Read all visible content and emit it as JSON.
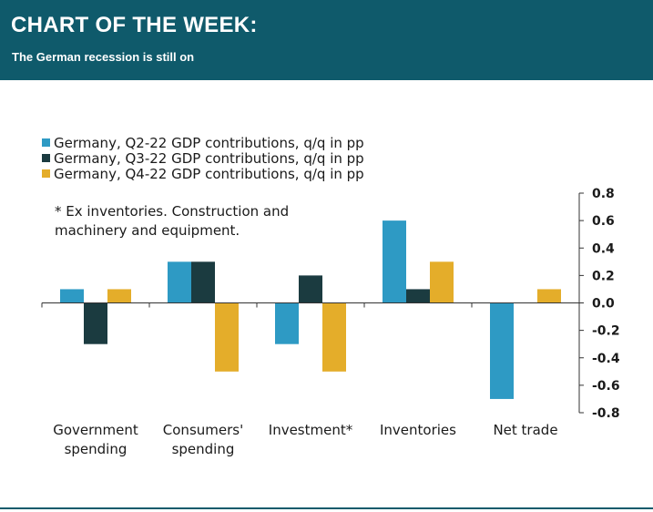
{
  "header": {
    "title": "CHART OF THE WEEK:",
    "subtitle": "The German recession is still on"
  },
  "colors": {
    "header_bg": "#0f5a6b",
    "q2": "#2e9ac4",
    "q3": "#1b3b40",
    "q4": "#e4ad2a"
  },
  "chart_data": {
    "type": "bar",
    "note": "* Ex inventories. Construction and\nmachinery and equipment.",
    "categories": [
      [
        "Government",
        "spending"
      ],
      [
        "Consumers'",
        "spending"
      ],
      [
        "Investment*"
      ],
      [
        "Inventories"
      ],
      [
        "Net trade"
      ]
    ],
    "series": [
      {
        "name": "Germany, Q2-22 GDP contributions, q/q in pp",
        "color": "#2e9ac4",
        "values": [
          0.1,
          0.3,
          -0.3,
          0.6,
          -0.7
        ]
      },
      {
        "name": "Germany, Q3-22 GDP contributions, q/q in pp",
        "color": "#1b3b40",
        "values": [
          -0.3,
          0.3,
          0.2,
          0.1,
          0.0
        ]
      },
      {
        "name": "Germany, Q4-22 GDP contributions, q/q in pp",
        "color": "#e4ad2a",
        "values": [
          0.1,
          -0.5,
          -0.5,
          0.3,
          0.1
        ]
      }
    ],
    "ylim": [
      -0.8,
      0.8
    ],
    "yticks": [
      "0.8",
      "0.6",
      "0.4",
      "0.2",
      "0.0",
      "-0.2",
      "-0.4",
      "-0.6",
      "-0.8"
    ],
    "y_axis_side": "right",
    "legend_position": "top-left",
    "grid": false
  }
}
